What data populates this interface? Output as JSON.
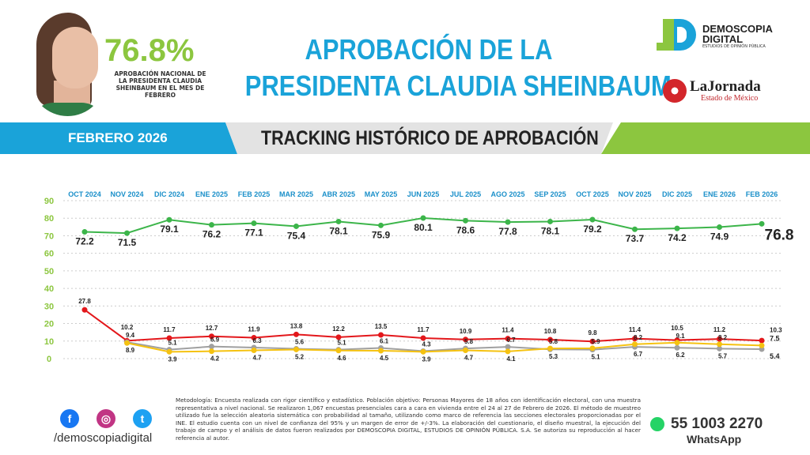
{
  "header": {
    "approval_value": "76.8%",
    "approval_caption": "APROBACIÓN NACIONAL DE LA PRESIDENTA CLAUDIA SHEINBAUM EN EL MES DE FEBRERO",
    "title_line1": "APROBACIÓN DE LA",
    "title_line2": "PRESIDENTA CLAUDIA SHEINBAUM"
  },
  "logos": {
    "demoscopia_line1": "DEMOSCOPIA",
    "demoscopia_line2": "DIGITAL",
    "demoscopia_tag": "ESTUDIOS DE OPINIÓN PÚBLICA",
    "jornada": "LaJornada",
    "jornada_sub": "Estado de México"
  },
  "band": {
    "month": "FEBRERO 2026",
    "section_title": "TRACKING HISTÓRICO DE APROBACIÓN"
  },
  "colors": {
    "blue": "#1aa3d9",
    "green": "#8cc63f",
    "red": "#e3171b",
    "gray": "#a0a0a0",
    "yellow": "#f5c211",
    "line_green": "#3cb54a"
  },
  "chart_data": {
    "type": "line",
    "categories": [
      "OCT 2024",
      "NOV 2024",
      "DIC 2024",
      "ENE 2025",
      "FEB 2025",
      "MAR 2025",
      "ABR 2025",
      "MAY 2025",
      "JUN 2025",
      "JUL 2025",
      "AGO 2025",
      "SEP 2025",
      "OCT 2025",
      "NOV 2025",
      "DIC 2025",
      "ENE 2026",
      "FEB 2026"
    ],
    "ylim": [
      0,
      90
    ],
    "yticks": [
      0,
      10,
      20,
      30,
      40,
      50,
      60,
      70,
      80,
      90
    ],
    "grid": true,
    "series": [
      {
        "color": "#3cb54a",
        "values": [
          72.2,
          71.5,
          79.1,
          76.2,
          77.1,
          75.4,
          78.1,
          75.9,
          80.1,
          78.6,
          77.8,
          78.1,
          79.2,
          73.7,
          74.2,
          74.9,
          76.8
        ]
      },
      {
        "color": "#e3171b",
        "values": [
          27.8,
          10.2,
          11.7,
          12.7,
          11.9,
          13.8,
          12.2,
          13.5,
          11.7,
          10.9,
          11.4,
          10.8,
          9.8,
          11.4,
          10.5,
          11.2,
          10.3
        ]
      },
      {
        "color": "#a0a0a0",
        "values": [
          null,
          9.4,
          5.1,
          6.9,
          6.3,
          5.6,
          5.1,
          6.1,
          4.3,
          5.8,
          6.7,
          5.3,
          5.1,
          6.7,
          6.2,
          5.7,
          5.4
        ]
      },
      {
        "color": "#f5c211",
        "values": [
          null,
          8.9,
          3.9,
          4.2,
          4.7,
          5.2,
          4.6,
          4.5,
          3.9,
          4.7,
          4.1,
          5.8,
          5.9,
          8.2,
          9.1,
          8.2,
          7.5
        ]
      }
    ]
  },
  "footer": {
    "handle": "/demoscopiadigital",
    "methodology": "Metodología: Encuesta realizada con rigor científico y estadístico. Población objetivo: Personas Mayores de 18 años con identificación electoral, con una muestra representativa a nivel nacional. Se realizaron 1,067 encuestas presenciales cara a cara en vivienda entre el 24 al 27 de Febrero de 2026. El método de muestreo utilizado fue la selección aleatoria sistemática con probabilidad al tamaño, utilizando como marco de referencia las secciones electorales proporcionadas por el INE. El estudio cuenta con un nivel de confianza del 95% y un margen de error de +/-3%. La elaboración del cuestionario, el diseño muestral, la ejecución del trabajo de campo y el análisis de datos fueron realizados por DEMOSCOPIA DIGITAL, ESTUDIOS DE OPINIÓN PÚBLICA. S.A. Se autoriza su reproducción al hacer referencia al autor.",
    "phone": "55 1003 2270",
    "whatsapp": "WhatsApp"
  }
}
